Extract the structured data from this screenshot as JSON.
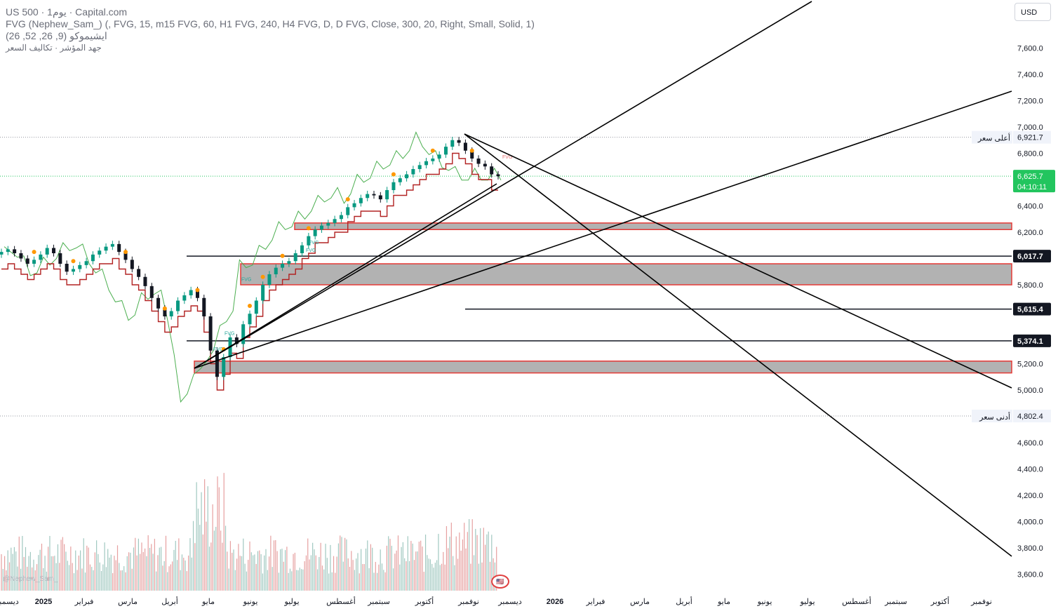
{
  "header": {
    "symbol_line": "US 500 · 1يوم · Capital.com",
    "indicator_fvg": "FVG (Nephew_Sam_) (, FVG, 15, m15 FVG, 60, H1 FVG, 240, H4 FVG, D, D FVG, Close, 300, 20, Right, Small, Solid, 1)",
    "indicator_ichimoku": "ايشيموكو (9, 26, 52, 26)",
    "indicator_hilo": "جهد المؤشر · تكاليف السعر"
  },
  "currency_button": "USD",
  "watermark": "@Nephew_Sam_",
  "flag_badge": "🇺🇸",
  "colors": {
    "up_candle": "#089981",
    "down_candle": "#131722",
    "supertrend": "#b22222",
    "lagging_span": "#4caf50",
    "zone_fill": "#b2b2b2",
    "zone_border": "#e53935",
    "fvg_label": "#26a69a",
    "swing_marker": "#ff9800",
    "last_price_bg": "#22c55e",
    "volume_up": "#e6a0a0",
    "volume_down": "#a0c8c0"
  },
  "chart_data": {
    "type": "candlestick",
    "price_axis": {
      "ticks": [
        "7,600.0",
        "7,400.0",
        "7,200.0",
        "7,000.0",
        "6,800.0",
        "6,400.0",
        "6,200.0",
        "5,800.0",
        "5,200.0",
        "5,000.0",
        "4,600.0",
        "4,400.0",
        "4,200.0",
        "4,000.0",
        "3,800.0",
        "3,600.0"
      ],
      "tick_values": [
        7600,
        7400,
        7200,
        7000,
        6800,
        6400,
        6200,
        5800,
        5200,
        5000,
        4600,
        4400,
        4200,
        4000,
        3800,
        3600
      ]
    },
    "time_axis": {
      "labels": [
        "ديسمبر",
        "2025",
        "فبراير",
        "مارس",
        "أبريل",
        "مايو",
        "يونيو",
        "يوليو",
        "أغسطس",
        "سبتمبر",
        "أكتوبر",
        "نوفمبر",
        "ديسمبر",
        "2026",
        "فبراير",
        "مارس",
        "أبريل",
        "مايو",
        "يونيو",
        "يوليو",
        "أغسطس",
        "سبتمبر",
        "أكتوبر",
        "نوفمبر"
      ],
      "year_labels": [
        "2025",
        "2026"
      ]
    },
    "price_tags": {
      "high": {
        "label": "أعلى سعر",
        "value": "6,921.7",
        "price": 6921.7
      },
      "last": {
        "value": "6,625.7",
        "countdown": "04:10:11",
        "price": 6625.7
      },
      "level_1": {
        "value": "6,017.7",
        "price": 6017.7
      },
      "level_2": {
        "value": "5,615.4",
        "price": 5615.4
      },
      "level_3": {
        "value": "5,374.1",
        "price": 5374.1
      },
      "low": {
        "label": "أدنى سعر",
        "value": "4,802.4",
        "price": 4802.4
      }
    },
    "zones": [
      {
        "top": 6270,
        "bottom": 6220
      },
      {
        "top": 5960,
        "bottom": 5800
      },
      {
        "top": 5220,
        "bottom": 5130
      }
    ],
    "fvg_labels": [
      {
        "text": "FVG",
        "price": 6760
      },
      {
        "text": "FVG",
        "price": 6110
      },
      {
        "text": "FVG",
        "price": 6050
      },
      {
        "text": "FVG",
        "price": 5830
      },
      {
        "text": "FVG",
        "price": 5420
      },
      {
        "text": "FVG",
        "price": 5300
      }
    ],
    "closes": [
      6050,
      6070,
      6040,
      6000,
      5960,
      5990,
      6030,
      6080,
      6040,
      5960,
      5900,
      5920,
      5950,
      5980,
      6030,
      6060,
      6090,
      6110,
      6050,
      5990,
      5920,
      5860,
      5790,
      5700,
      5620,
      5560,
      5600,
      5680,
      5720,
      5760,
      5700,
      5560,
      5300,
      5100,
      5250,
      5400,
      5350,
      5500,
      5580,
      5680,
      5800,
      5880,
      5930,
      5960,
      5980,
      6040,
      6100,
      6170,
      6220,
      6250,
      6270,
      6300,
      6330,
      6390,
      6420,
      6460,
      6490,
      6480,
      6450,
      6520,
      6580,
      6610,
      6640,
      6680,
      6710,
      6740,
      6760,
      6790,
      6850,
      6900,
      6880,
      6820,
      6760,
      6720,
      6700,
      6640,
      6625.7
    ]
  }
}
